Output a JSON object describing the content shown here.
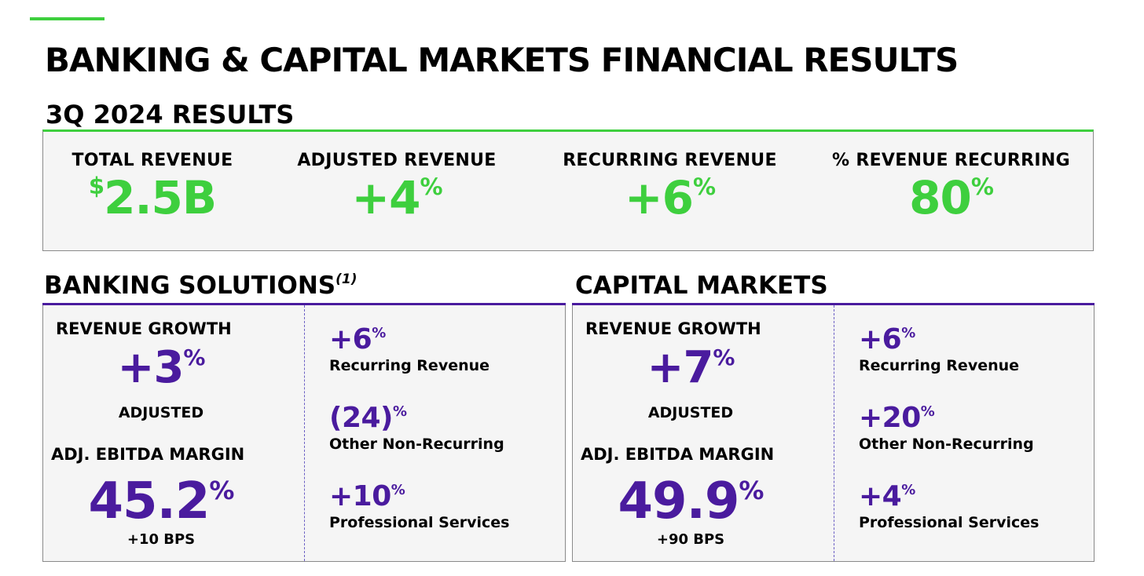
{
  "header": {
    "title": "BANKING & CAPITAL MARKETS FINANCIAL RESULTS",
    "subtitle": "3Q 2024 RESULTS",
    "accent_color": "#3ecf3e"
  },
  "kpis": [
    {
      "label": "TOTAL REVENUE",
      "prefix": "$",
      "value": "2.5B",
      "suffix": ""
    },
    {
      "label": "ADJUSTED REVENUE",
      "prefix": "",
      "value": "+4",
      "suffix": "%"
    },
    {
      "label": "RECURRING REVENUE",
      "prefix": "",
      "value": "+6",
      "suffix": "%"
    },
    {
      "label": "% REVENUE RECURRING",
      "prefix": "",
      "value": "80",
      "suffix": "%"
    }
  ],
  "segments": [
    {
      "title": "BANKING SOLUTIONS",
      "footnote": "(1)",
      "revenue_growth_label": "REVENUE GROWTH",
      "revenue_growth_value": "+3",
      "revenue_growth_suffix": "%",
      "adjusted_label": "ADJUSTED",
      "ebitda_label": "ADJ. EBITDA MARGIN",
      "ebitda_value": "45.2",
      "ebitda_suffix": "%",
      "bps_label": "+10 BPS",
      "breakdown": [
        {
          "value": "+6",
          "suffix": "%",
          "label": "Recurring Revenue"
        },
        {
          "value": "(24)",
          "suffix": "%",
          "label": "Other Non-Recurring"
        },
        {
          "value": "+10",
          "suffix": "%",
          "label": "Professional Services"
        }
      ]
    },
    {
      "title": "CAPITAL MARKETS",
      "footnote": "",
      "revenue_growth_label": "REVENUE GROWTH",
      "revenue_growth_value": "+7",
      "revenue_growth_suffix": "%",
      "adjusted_label": "ADJUSTED",
      "ebitda_label": "ADJ. EBITDA MARGIN",
      "ebitda_value": "49.9",
      "ebitda_suffix": "%",
      "bps_label": "+90 BPS",
      "breakdown": [
        {
          "value": "+6",
          "suffix": "%",
          "label": "Recurring Revenue"
        },
        {
          "value": "+20",
          "suffix": "%",
          "label": "Other Non-Recurring"
        },
        {
          "value": "+4",
          "suffix": "%",
          "label": "Professional Services"
        }
      ]
    }
  ],
  "colors": {
    "green": "#3ecf3e",
    "purple": "#4a1b9e"
  }
}
